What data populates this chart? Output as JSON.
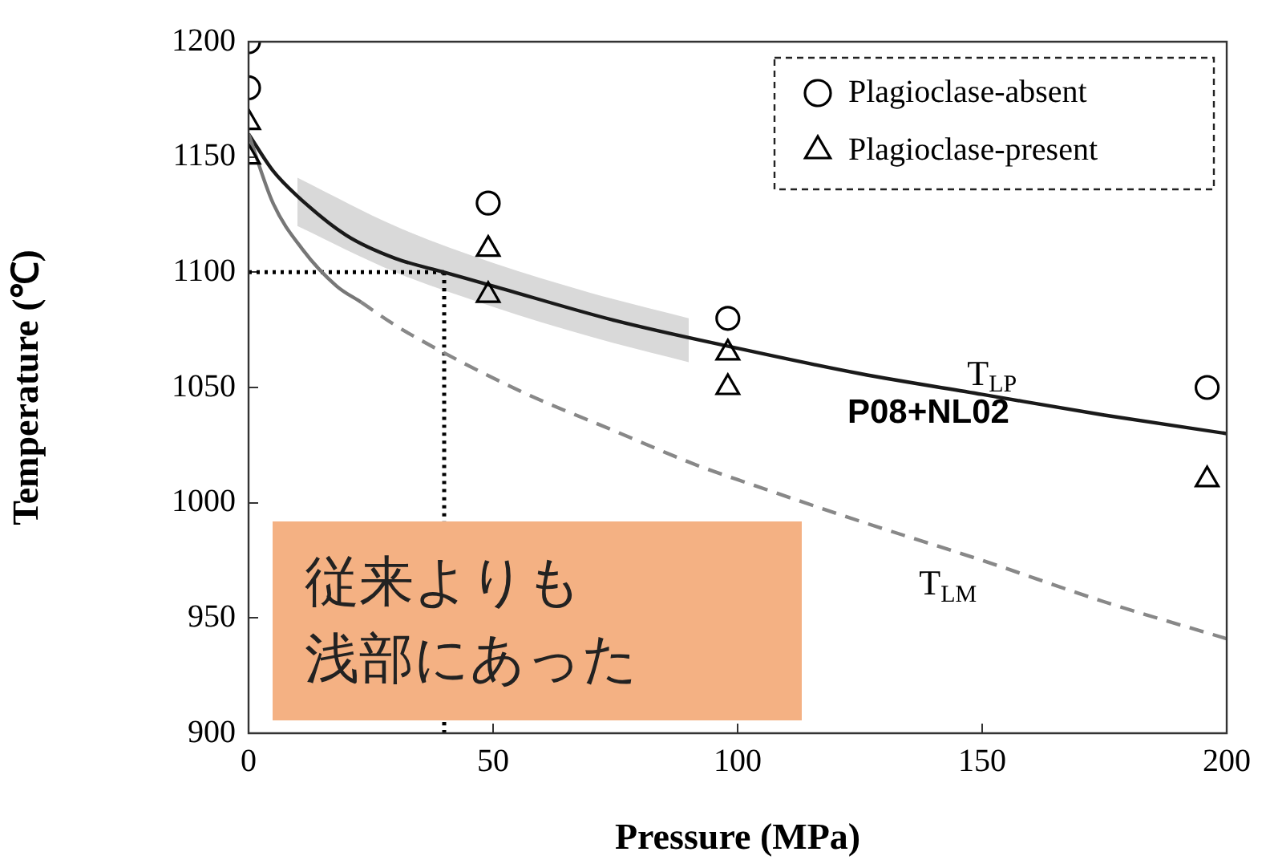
{
  "chart_data": {
    "type": "scatter",
    "xlabel": "Pressure (MPa)",
    "ylabel": "Temperature (℃)",
    "xlim": [
      0,
      200
    ],
    "xticks": [
      0,
      50,
      100,
      150,
      200
    ],
    "ylim": [
      900,
      1200
    ],
    "yticks": [
      900,
      950,
      1000,
      1050,
      1100,
      1150,
      1200
    ],
    "grid": false,
    "legend": "top right",
    "series": [
      {
        "type": "area",
        "color": "#d9d9d9",
        "x": [
          10,
          30,
          50,
          70,
          90
        ],
        "values": [
          null,
          null,
          null,
          null,
          null
        ],
        "lower": [
          1120,
          1100,
          1085,
          1072,
          1061
        ],
        "upper": [
          1141,
          1120,
          1104,
          1091,
          1080
        ]
      },
      {
        "type": "line",
        "color": "#000000",
        "line_style": "dotted",
        "x": [
          0,
          40
        ],
        "values": [
          1100,
          1100
        ]
      },
      {
        "type": "line",
        "color": "#000000",
        "line_style": "dotted",
        "x": [
          40,
          40
        ],
        "values": [
          1100,
          900
        ]
      },
      {
        "type": "line",
        "color": "#1a1a1a",
        "line_style": "solid",
        "x": [
          0,
          5,
          10,
          20,
          30,
          40,
          50,
          75,
          100,
          125,
          150,
          175,
          200
        ],
        "values": [
          1160,
          1144,
          1133,
          1116,
          1106,
          1100,
          1094,
          1079,
          1067,
          1056,
          1047,
          1038,
          1030
        ]
      },
      {
        "type": "line",
        "color": "#777777",
        "line_style": "solid",
        "x": [
          0,
          5,
          11,
          18,
          23
        ],
        "values": [
          1160,
          1130,
          1110,
          1094,
          1087
        ]
      },
      {
        "type": "line",
        "color": "#888888",
        "line_style": "dashed",
        "x": [
          23,
          30,
          40,
          56,
          75,
          92,
          100,
          125,
          150,
          175,
          200
        ],
        "values": [
          1087,
          1077,
          1065,
          1048,
          1031,
          1016,
          1010,
          992,
          975,
          957,
          941
        ]
      },
      {
        "name": "Plagioclase-absent",
        "marker": "circle",
        "color": "#000000",
        "x": [
          0,
          0,
          49,
          98,
          196
        ],
        "values": [
          1200,
          1180,
          1130,
          1080,
          1050
        ]
      },
      {
        "name": "Plagioclase-present",
        "marker": "triangle",
        "color": "#000000",
        "x": [
          0,
          0,
          49,
          49,
          98,
          98,
          196
        ],
        "values": [
          1165,
          1150,
          1110,
          1090,
          1065,
          1050,
          1010
        ]
      }
    ],
    "annotations": [
      {
        "text": "T$_{LP}$",
        "x": 152,
        "y": 1046
      },
      {
        "text": "P08+NL02",
        "x": 139,
        "y": 1050
      },
      {
        "text": "T$_{LM}$",
        "x": 143,
        "y": 978
      },
      "従来よりも",
      "浅部にあった"
    ]
  }
}
